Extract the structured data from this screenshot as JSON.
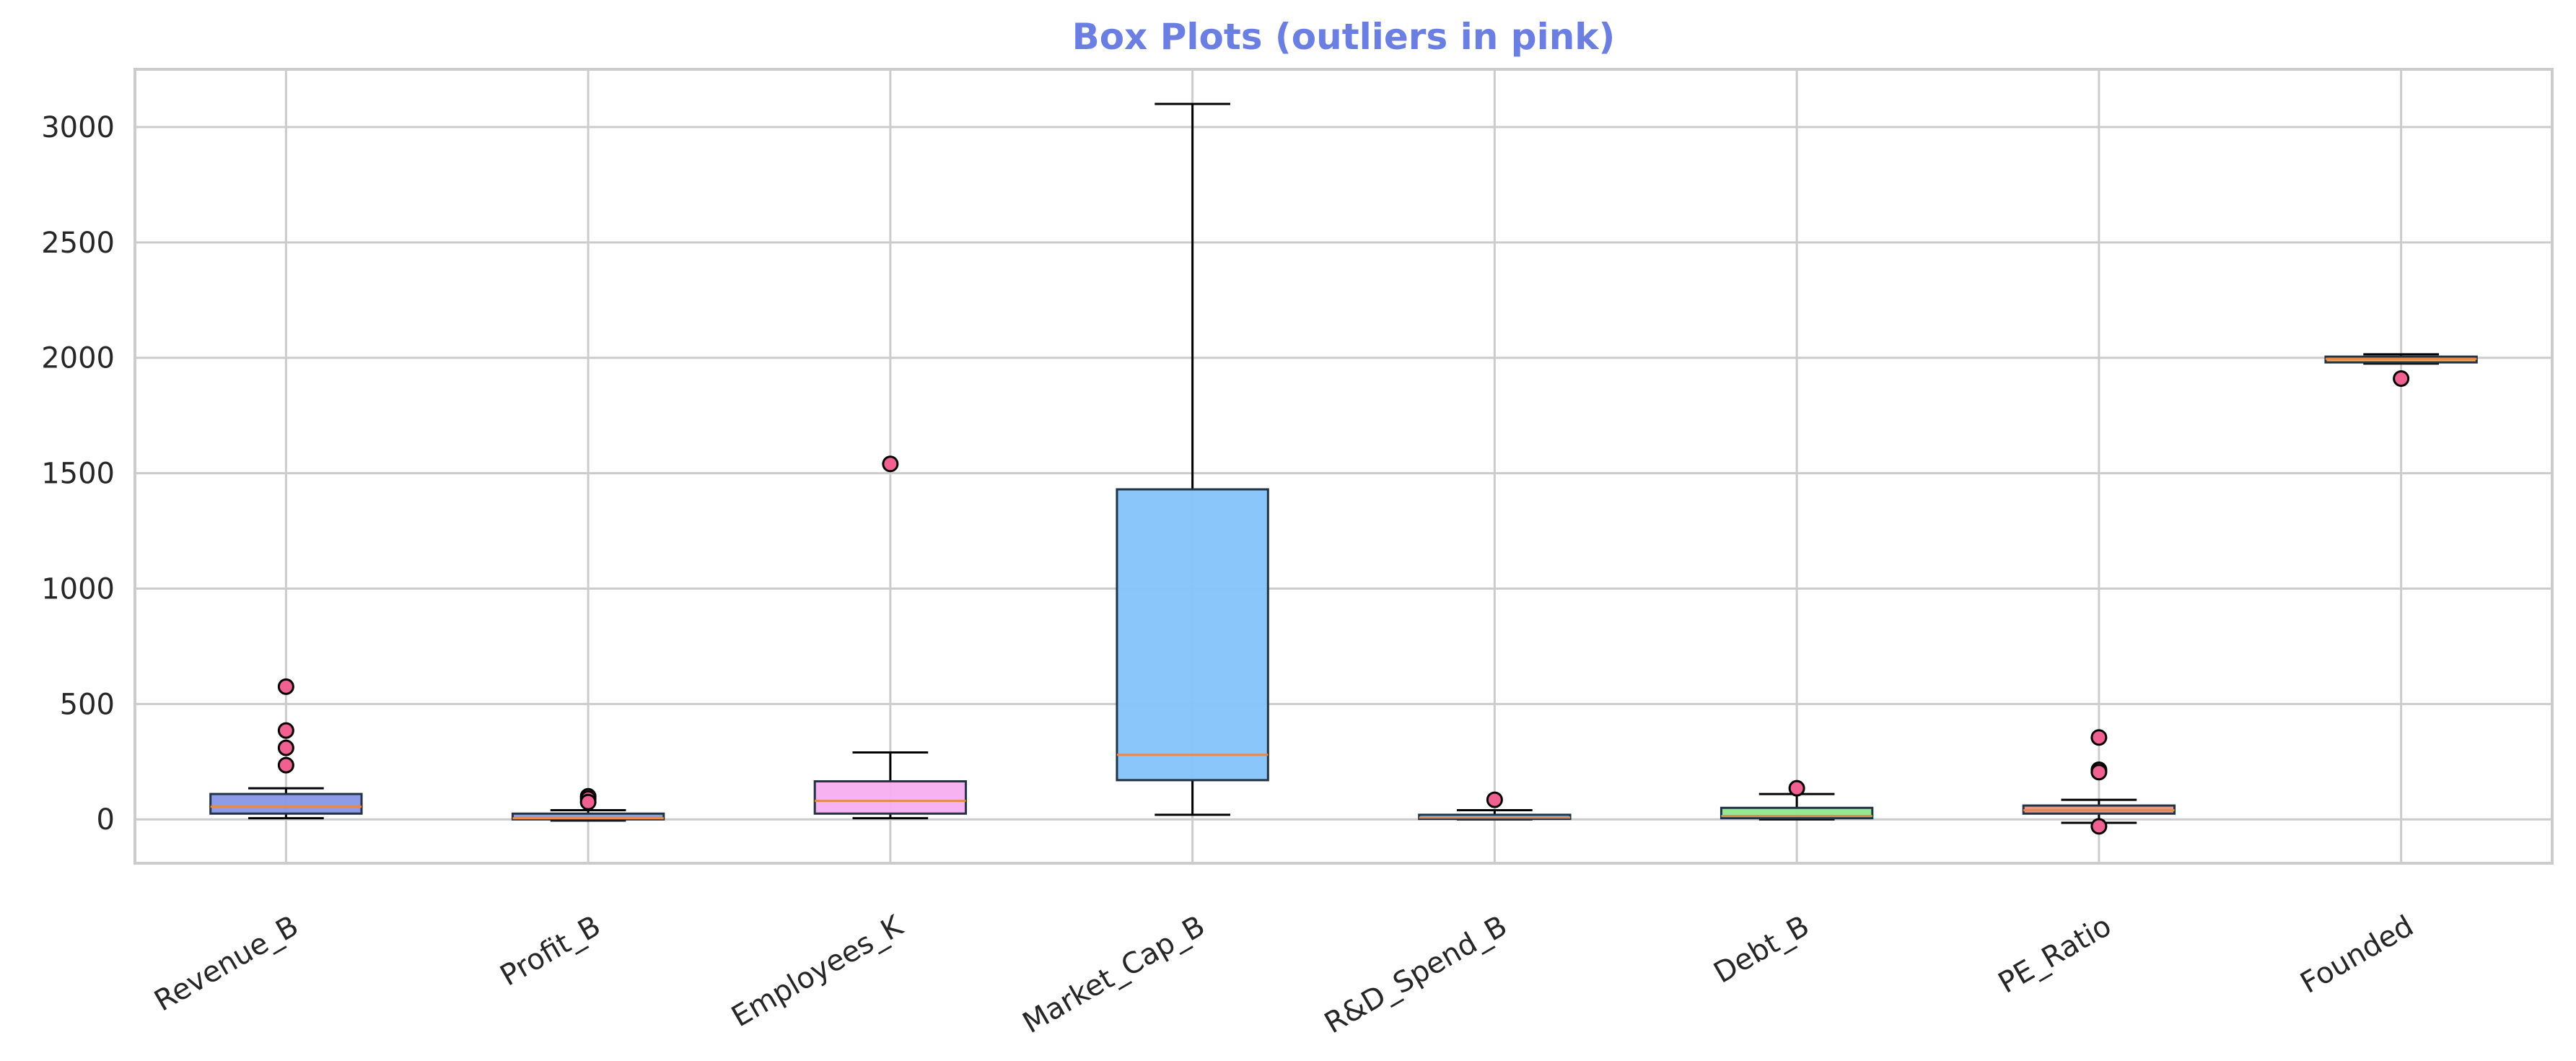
{
  "colors": {
    "title": "#6b7fe3",
    "outlier_fill": "#f06090",
    "median": "#e8894a",
    "grid": "#cccccc",
    "frame": "#cccccc",
    "whisker": "#000000",
    "box_edge": "#223344"
  },
  "chart_data": {
    "type": "box",
    "title": "Box Plots (outliers in pink)",
    "xlabel": "",
    "ylabel": "",
    "ylim": [
      -190,
      3250
    ],
    "yticks": [
      0,
      500,
      1000,
      1500,
      2000,
      2500,
      3000
    ],
    "grid": true,
    "categories": [
      "Revenue_B",
      "Profit_B",
      "Employees_K",
      "Market_Cap_B",
      "R&D_Spend_B",
      "Debt_B",
      "PE_Ratio",
      "Founded"
    ],
    "boxes": [
      {
        "name": "Revenue_B",
        "whisker_low": 5,
        "q1": 25,
        "median": 55,
        "q3": 110,
        "whisker_high": 135,
        "outliers": [
          575,
          385,
          310,
          235
        ],
        "color": "#8796e8"
      },
      {
        "name": "Profit_B",
        "whisker_low": -5,
        "q1": 0,
        "median": 5,
        "q3": 25,
        "whisker_high": 40,
        "outliers": [
          100,
          90,
          75
        ],
        "color": "#8796e8"
      },
      {
        "name": "Employees_K",
        "whisker_low": 5,
        "q1": 25,
        "median": 80,
        "q3": 165,
        "whisker_high": 290,
        "outliers": [
          1540
        ],
        "color": "#f5aef0"
      },
      {
        "name": "Market_Cap_B",
        "whisker_low": 20,
        "q1": 170,
        "median": 280,
        "q3": 1430,
        "whisker_high": 3100,
        "outliers": [],
        "color": "#85c3fa"
      },
      {
        "name": "R&D_Spend_B",
        "whisker_low": 0,
        "q1": 2,
        "median": 8,
        "q3": 20,
        "whisker_high": 40,
        "outliers": [
          85
        ],
        "color": "#85c3fa"
      },
      {
        "name": "Debt_B",
        "whisker_low": 0,
        "q1": 5,
        "median": 15,
        "q3": 50,
        "whisker_high": 110,
        "outliers": [
          135
        ],
        "color": "#8ee78e"
      },
      {
        "name": "PE_Ratio",
        "whisker_low": -15,
        "q1": 25,
        "median": 40,
        "q3": 60,
        "whisker_high": 85,
        "outliers": [
          355,
          215,
          205,
          -30
        ],
        "color": "#e8907c"
      },
      {
        "name": "Founded",
        "whisker_low": 1975,
        "q1": 1980,
        "median": 1995,
        "q3": 2005,
        "whisker_high": 2015,
        "outliers": [
          1910
        ],
        "color": "#f0a552"
      }
    ]
  }
}
